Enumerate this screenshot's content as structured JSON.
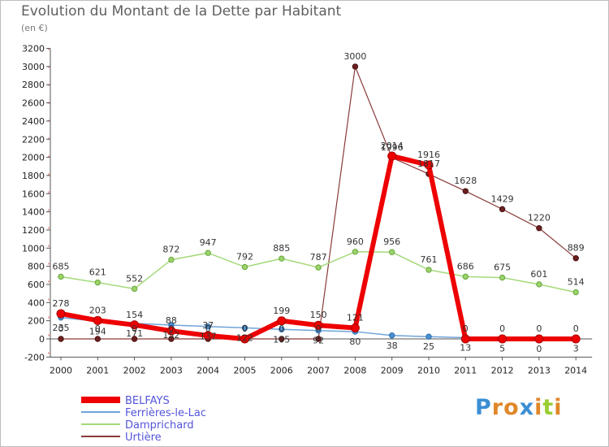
{
  "chart_data": {
    "type": "line",
    "title": "Evolution du Montant de la Dette par Habitant",
    "subtitle": "(en €)",
    "x": [
      "2000",
      "2001",
      "2002",
      "2003",
      "2004",
      "2005",
      "2006",
      "2007",
      "2008",
      "2009",
      "2010",
      "2011",
      "2012",
      "2013",
      "2014"
    ],
    "ylim": [
      -200,
      3200
    ],
    "yticks": [
      -200,
      0,
      200,
      400,
      600,
      800,
      1000,
      1200,
      1400,
      1600,
      1800,
      2000,
      2200,
      2400,
      2600,
      2800,
      3000,
      3200
    ],
    "grid": false,
    "legend_position": "bottom-left",
    "series": [
      {
        "name": "BELFAYS",
        "color": "#ee0000",
        "values": [
          278,
          203,
          154,
          88,
          37,
          0,
          199,
          150,
          121,
          2014,
          1916,
          0,
          0,
          0,
          0
        ]
      },
      {
        "name": "Ferrières-le-Lac",
        "color": "#5a9bd4",
        "values": [
          235,
          194,
          171,
          152,
          137,
          122,
          105,
          92,
          80,
          38,
          25,
          13,
          5,
          0,
          3
        ]
      },
      {
        "name": "Damprichard",
        "color": "#99d468",
        "values": [
          685,
          621,
          552,
          872,
          947,
          792,
          885,
          787,
          960,
          956,
          761,
          686,
          675,
          601,
          514
        ]
      },
      {
        "name": "Urtière",
        "color": "#7a2828",
        "values": [
          0,
          0,
          0,
          0,
          0,
          0,
          0,
          0,
          3000,
          1996,
          1817,
          1628,
          1429,
          1220,
          889
        ]
      }
    ]
  },
  "logo": {
    "letters": [
      "P",
      "r",
      "o",
      "x",
      "i",
      "t",
      "i"
    ],
    "colors": [
      "#3b8fd4",
      "#e0872a",
      "#e0872a",
      "#3b8fd4",
      "#e0872a",
      "#9acd32",
      "#e0872a"
    ]
  }
}
